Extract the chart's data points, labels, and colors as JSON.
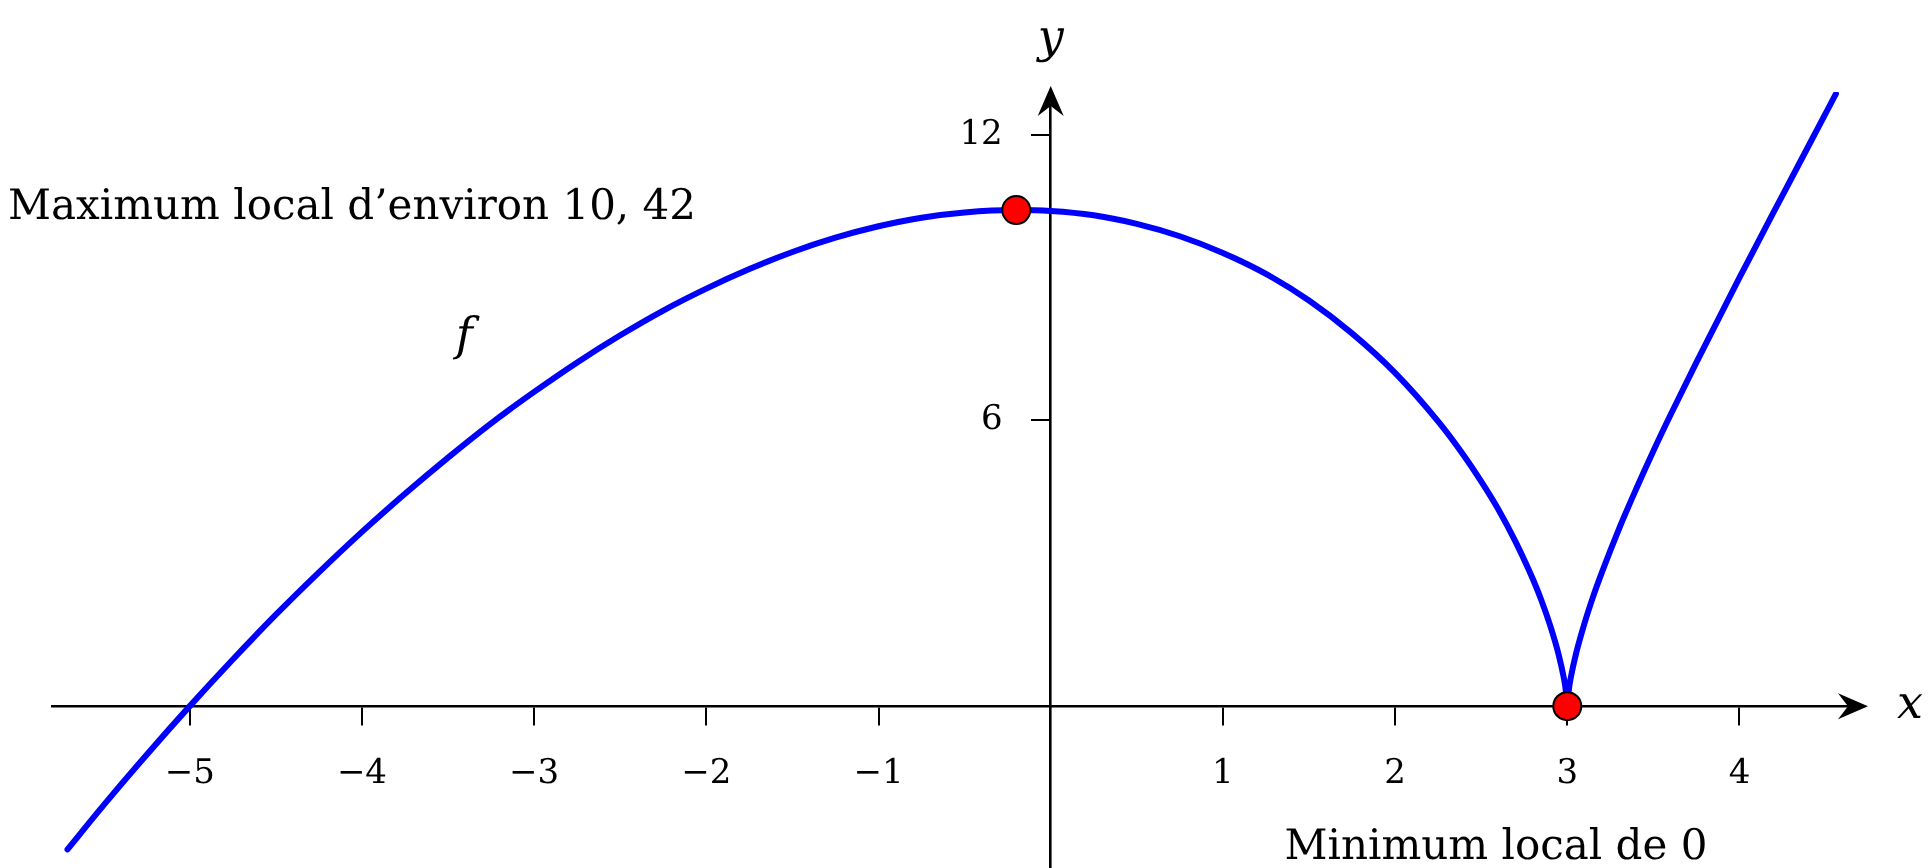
{
  "chart_data": {
    "type": "line",
    "xlabel": "x",
    "ylabel": "y",
    "xlim": [
      -5.8,
      4.7
    ],
    "ylim": [
      -3.4,
      12.9
    ],
    "xticks": [
      {
        "value": -5,
        "label": "−5"
      },
      {
        "value": -4,
        "label": "−4"
      },
      {
        "value": -3,
        "label": "−3"
      },
      {
        "value": -2,
        "label": "−2"
      },
      {
        "value": -1,
        "label": "−1"
      },
      1,
      2,
      3,
      4
    ],
    "yticks": [
      6,
      12
    ],
    "series": [
      {
        "name": "f",
        "color": "#0000ff",
        "x": [
          -5.71,
          -5.5,
          -5.25,
          -5,
          -4.75,
          -4.5,
          -4.25,
          -4,
          -3.75,
          -3.5,
          -3.25,
          -3,
          -2.75,
          -2.5,
          -2.25,
          -2,
          -1.75,
          -1.5,
          -1.25,
          -1,
          -0.75,
          -0.5,
          -0.2,
          0,
          0.25,
          0.5,
          0.75,
          1,
          1.25,
          1.5,
          1.75,
          2,
          2.25,
          2.4,
          2.5,
          2.6,
          2.7,
          2.8,
          2.85,
          2.9,
          2.95,
          2.98,
          2.99,
          3,
          3.01,
          3.02,
          3.05,
          3.1,
          3.15,
          3.2,
          3.3,
          3.4,
          3.5,
          3.6,
          3.75,
          4,
          4.25,
          4.4,
          4.56
        ],
        "values": [
          -3.01,
          -2.08,
          -1.02,
          0,
          0.98,
          1.92,
          2.81,
          3.66,
          4.46,
          5.22,
          5.94,
          6.6,
          7.22,
          7.79,
          8.31,
          8.77,
          9.18,
          9.54,
          9.84,
          10.08,
          10.26,
          10.37,
          10.42,
          10.4,
          10.31,
          10.13,
          9.87,
          9.52,
          9.08,
          8.52,
          7.83,
          7,
          5.98,
          5.26,
          4.72,
          4.13,
          3.45,
          2.67,
          2.22,
          1.7,
          1.08,
          0.59,
          0.37,
          0,
          0.37,
          0.59,
          1.09,
          1.74,
          2.3,
          2.8,
          3.72,
          4.56,
          5.36,
          6.12,
          7.22,
          9,
          10.73,
          11.76,
          12.86
        ]
      },
      {
        "type": "scatter",
        "color": "#ff0000",
        "marker": "circle",
        "x": [
          -0.2,
          3
        ],
        "values": [
          10.42,
          0
        ]
      }
    ],
    "annotations": [
      "Maximum local d’environ 10, 42",
      "Minimum local de 0"
    ]
  }
}
